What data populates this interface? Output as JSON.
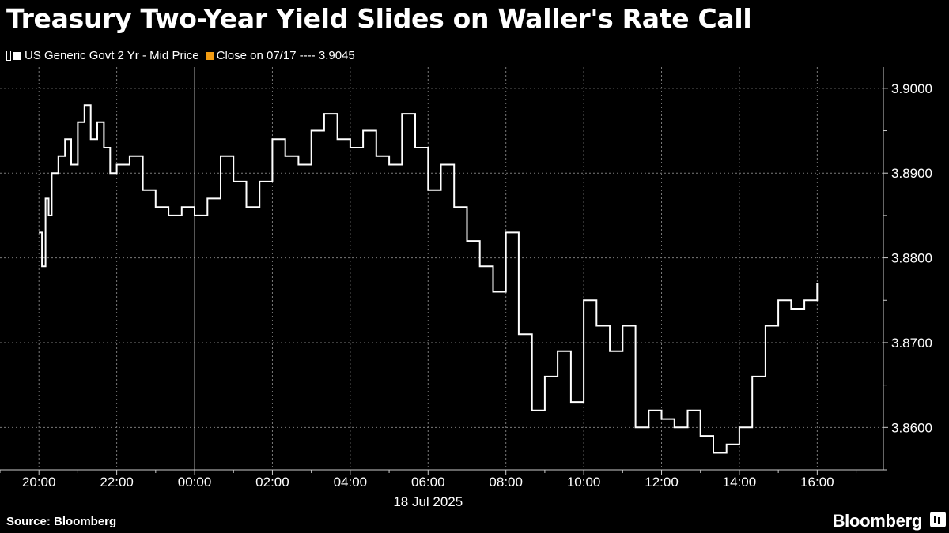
{
  "title": "Treasury Two-Year Yield Slides on Waller's Rate Call",
  "legend": {
    "series_label": "US Generic Govt 2 Yr - Mid Price",
    "close_label": "Close on 07/17 ---- 3.9045",
    "series_color": "#ffffff",
    "close_color": "#f39c12"
  },
  "footer": {
    "source": "Source: Bloomberg",
    "brand": "Bloomberg"
  },
  "chart_data": {
    "type": "line",
    "title": "Treasury Two-Year Yield Slides on Waller's Rate Call",
    "xlabel": "18 Jul 2025",
    "ylabel": "",
    "x_ticks": [
      "20:00",
      "22:00",
      "00:00",
      "02:00",
      "04:00",
      "06:00",
      "08:00",
      "10:00",
      "12:00",
      "14:00",
      "16:00"
    ],
    "x_tick_hours": [
      0,
      2,
      4,
      6,
      8,
      10,
      12,
      14,
      16,
      18,
      20
    ],
    "xlim_hours": [
      -1,
      21.7
    ],
    "y_ticks": [
      3.86,
      3.87,
      3.88,
      3.89,
      3.9
    ],
    "y_tick_labels": [
      "3.8600",
      "3.8700",
      "3.8800",
      "3.8900",
      "3.9000"
    ],
    "ylim": [
      3.855,
      3.9025
    ],
    "grid": true,
    "series": [
      {
        "name": "US Generic Govt 2 Yr - Mid Price",
        "x_hours": [
          0.0,
          0.08,
          0.17,
          0.25,
          0.33,
          0.5,
          0.67,
          0.83,
          1.0,
          1.17,
          1.33,
          1.5,
          1.67,
          1.83,
          2.0,
          2.33,
          2.67,
          3.0,
          3.33,
          3.67,
          4.0,
          4.33,
          4.67,
          5.0,
          5.33,
          5.67,
          6.0,
          6.33,
          6.67,
          7.0,
          7.33,
          7.67,
          8.0,
          8.33,
          8.67,
          9.0,
          9.33,
          9.67,
          10.0,
          10.33,
          10.67,
          11.0,
          11.33,
          11.67,
          12.0,
          12.33,
          12.67,
          13.0,
          13.33,
          13.67,
          14.0,
          14.33,
          14.67,
          15.0,
          15.33,
          15.67,
          16.0,
          16.33,
          16.67,
          17.0,
          17.33,
          17.67,
          18.0,
          18.33,
          18.67,
          19.0,
          19.33,
          19.67,
          20.0
        ],
        "values": [
          3.883,
          3.879,
          3.887,
          3.885,
          3.89,
          3.892,
          3.894,
          3.891,
          3.896,
          3.898,
          3.894,
          3.896,
          3.893,
          3.89,
          3.891,
          3.892,
          3.888,
          3.886,
          3.885,
          3.886,
          3.885,
          3.887,
          3.892,
          3.889,
          3.886,
          3.889,
          3.894,
          3.892,
          3.891,
          3.895,
          3.897,
          3.894,
          3.893,
          3.895,
          3.892,
          3.891,
          3.897,
          3.893,
          3.888,
          3.891,
          3.886,
          3.882,
          3.879,
          3.876,
          3.883,
          3.871,
          3.862,
          3.866,
          3.869,
          3.863,
          3.875,
          3.872,
          3.869,
          3.872,
          3.86,
          3.862,
          3.861,
          3.86,
          3.862,
          3.859,
          3.857,
          3.858,
          3.86,
          3.866,
          3.872,
          3.875,
          3.874,
          3.875,
          3.877
        ]
      }
    ]
  }
}
